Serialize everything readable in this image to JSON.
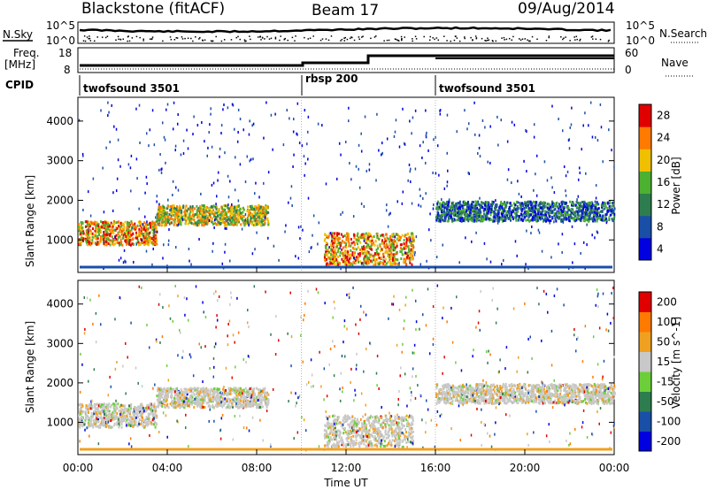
{
  "header": {
    "title": "Blackstone (fitACF)",
    "beam": "Beam 17",
    "date": "09/Aug/2014"
  },
  "strip_labels": {
    "nsky": "N.Sky",
    "freq": "Freq.",
    "freq_unit": "[MHz]",
    "cpid": "CPID",
    "nsearch": "N.Search",
    "nave": "Nave"
  },
  "noise_axis": {
    "left_top": "10^5",
    "left_bottom": "10^0",
    "right_top": "10^5",
    "right_bottom": "10^0"
  },
  "freq_axis": {
    "left": [
      "18",
      "8"
    ],
    "right": [
      "60",
      "0"
    ]
  },
  "cpid_segments": [
    {
      "label": "twofsound 3501",
      "start_hour": 0,
      "end_hour": 10
    },
    {
      "label": "rbsp 200",
      "start_hour": 10,
      "end_hour": 16
    },
    {
      "label": "twofsound 3501",
      "start_hour": 16,
      "end_hour": 24
    }
  ],
  "chart_data": [
    {
      "type": "heatmap",
      "panel": "power",
      "ylabel": "Slant Range [km]",
      "yticks": [
        1000,
        2000,
        3000,
        4000
      ],
      "ylim": [
        180,
        4600
      ],
      "xlim": [
        0,
        24
      ],
      "colorbar_label": "Power [dB]",
      "colorbar_ticks": [
        "4",
        "8",
        "12",
        "16",
        "20",
        "24",
        "28"
      ],
      "colors": [
        "#0000e0",
        "#1a4fa8",
        "#2e7d4f",
        "#4cb030",
        "#f0c000",
        "#ff7a00",
        "#e00000"
      ],
      "scatter_echo_bands": [
        {
          "hour_start": 0.0,
          "hour_end": 3.5,
          "range_start_km": 900,
          "range_end_km": 1500,
          "level": "high"
        },
        {
          "hour_start": 3.5,
          "hour_end": 8.5,
          "range_start_km": 1400,
          "range_end_km": 1900,
          "level": "medium"
        },
        {
          "hour_start": 11.0,
          "hour_end": 15.0,
          "range_start_km": 400,
          "range_end_km": 1200,
          "level": "high"
        },
        {
          "hour_start": 16.0,
          "hour_end": 24.0,
          "range_start_km": 1500,
          "range_end_km": 2000,
          "level": "low"
        }
      ]
    },
    {
      "type": "heatmap",
      "panel": "velocity",
      "ylabel": "Slant Range [km]",
      "yticks": [
        1000,
        2000,
        3000,
        4000
      ],
      "ylim": [
        180,
        4600
      ],
      "xlim": [
        0,
        24
      ],
      "xlabel": "Time UT",
      "xticks": [
        "00:00",
        "04:00",
        "08:00",
        "12:00",
        "16:00",
        "20:00",
        "00:00"
      ],
      "colorbar_label": "Velocity [m s^-1]",
      "colorbar_ticks": [
        "200",
        "100",
        "50",
        "15",
        "-15",
        "-50",
        "-100",
        "-200"
      ],
      "colors": [
        "#0000e0",
        "#1a4fa8",
        "#2e7d4f",
        "#6ccf3a",
        "#c8c8c8",
        "#f0a020",
        "#ff7a00",
        "#e00000"
      ]
    }
  ]
}
